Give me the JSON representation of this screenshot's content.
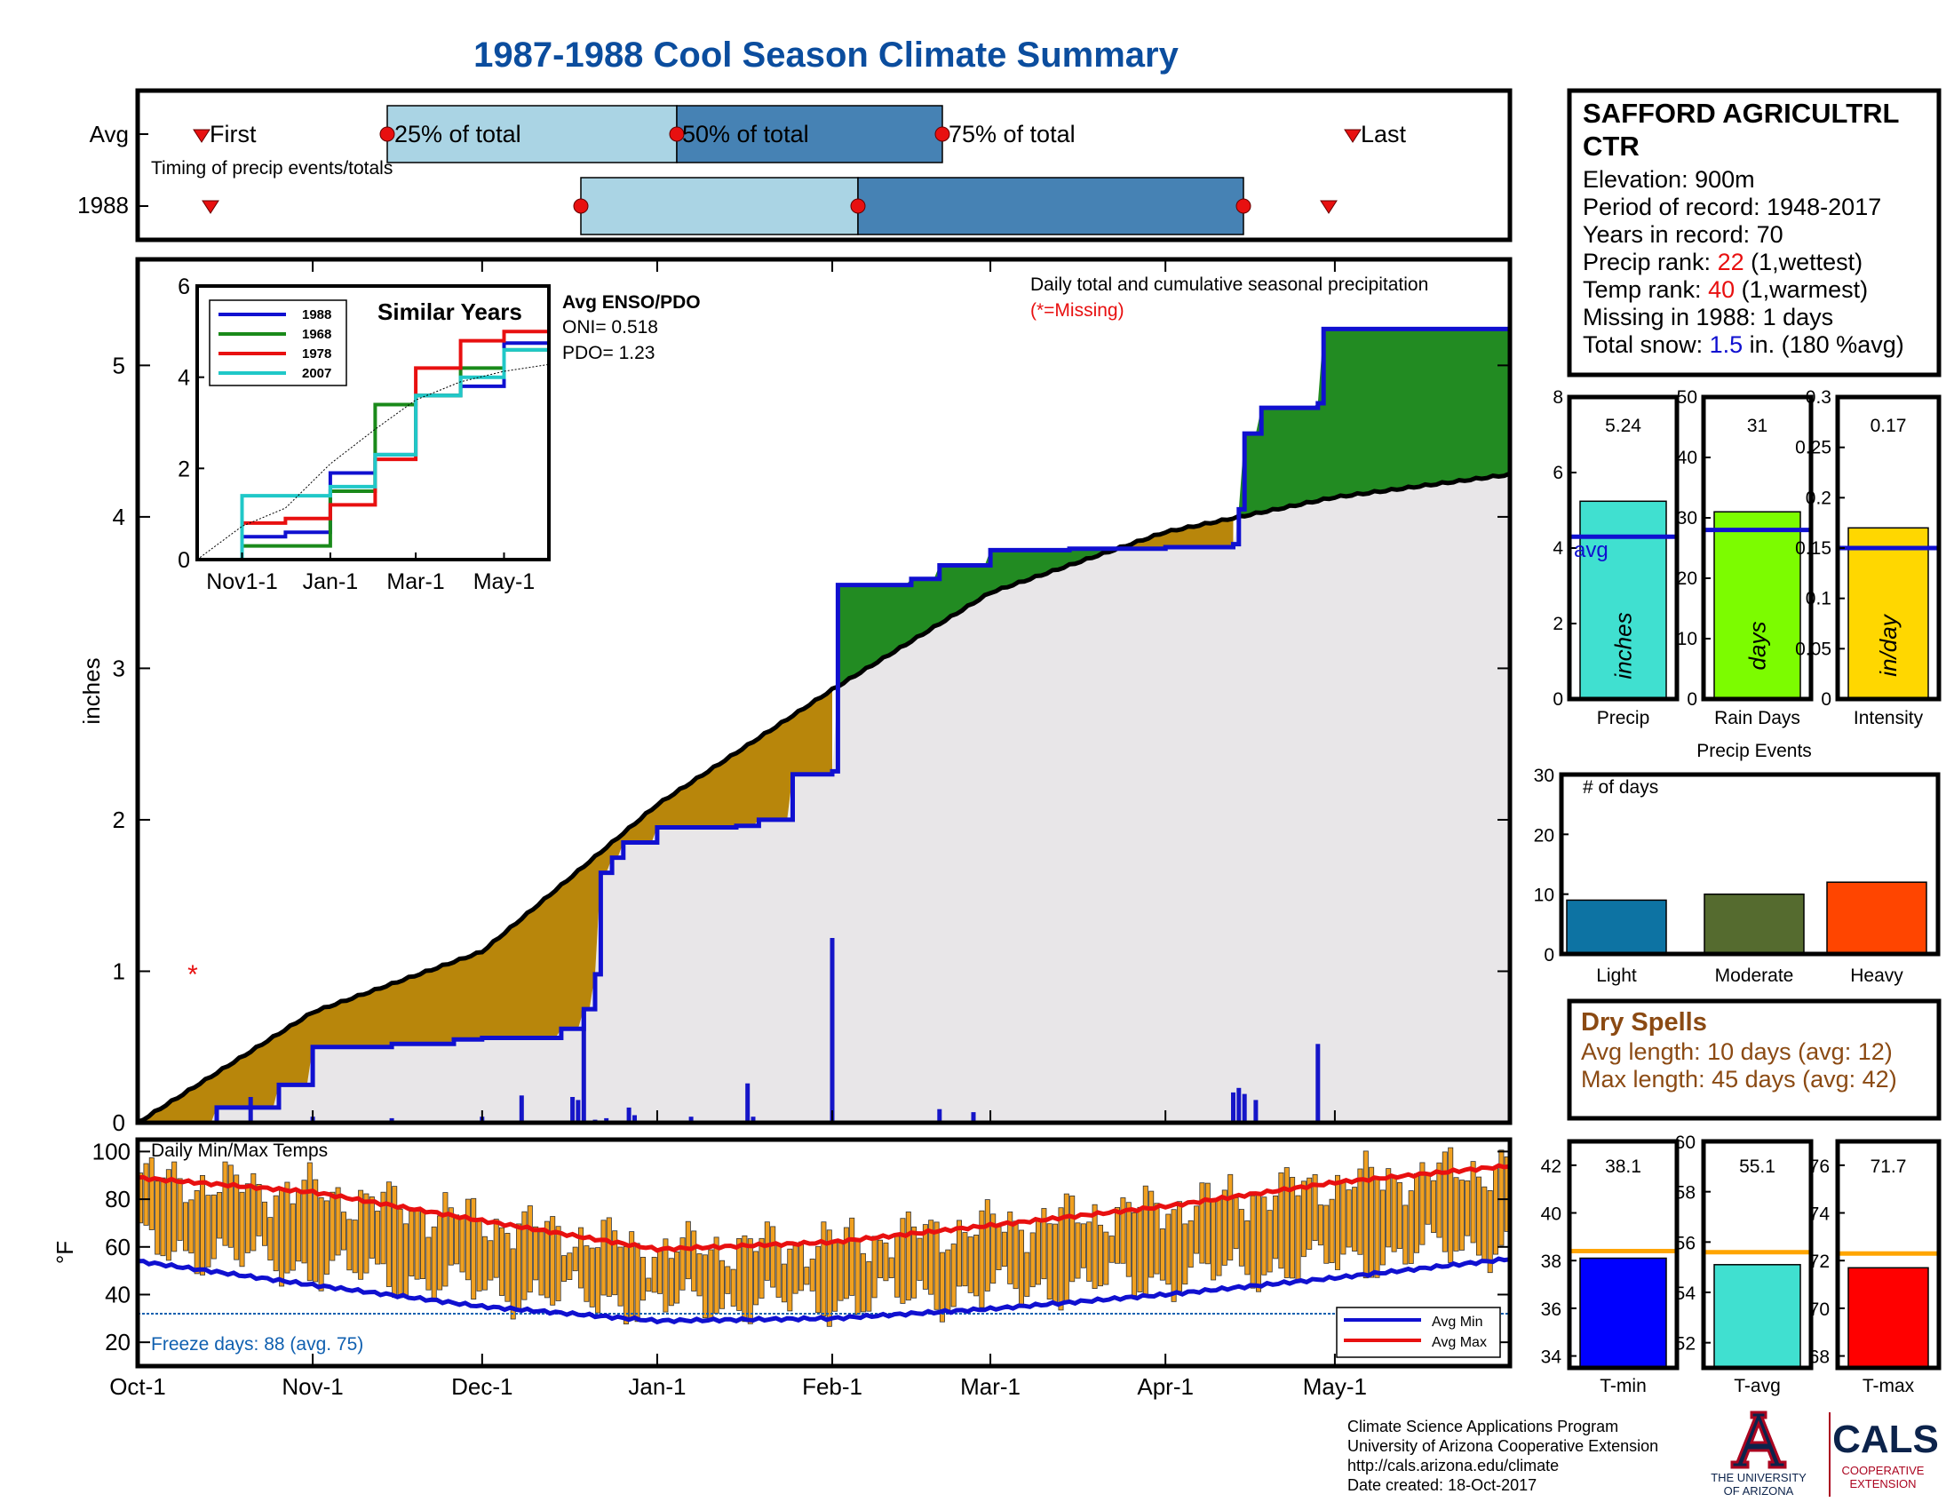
{
  "title": "1987-1988 Cool Season Climate Summary",
  "colors": {
    "title": "#0b4d9e",
    "tan": "#b8860b",
    "green": "#228b22",
    "gray": "#e8e6e8",
    "blue": "#1010d0",
    "red": "#e81010",
    "cyan": "#20c8c8",
    "orange": "#f0a020",
    "light_blue_box": "#aad4e4",
    "mid_blue_box": "#4682b4",
    "brown_text": "#8b4a13",
    "freeze_text": "#1060b0"
  },
  "timing": {
    "rows": [
      "Avg",
      "1988"
    ],
    "subtitle": "Timing of precip events/totals",
    "labels": {
      "first": "First",
      "p25": "25% of total",
      "p50": "50% of total",
      "p75": "75% of total",
      "last": "Last"
    }
  },
  "station": {
    "name_line1": "SAFFORD AGRICULTRL",
    "name_line2": "CTR",
    "elevation": "Elevation: 900m",
    "period": "Period of record: 1948-2017",
    "years": "Years in record: 70",
    "precip_rank_label": "Precip rank: ",
    "precip_rank_value": "22",
    "precip_rank_note": " (1,wettest)",
    "temp_rank_label": "Temp rank: ",
    "temp_rank_value": "40",
    "temp_rank_note": " (1,warmest)",
    "missing": "Missing in 1988: 1 days",
    "snow_label": "Total snow: ",
    "snow_value": "1.5",
    "snow_note": " in. (180 %avg)"
  },
  "main_plot": {
    "ylabel": "inches",
    "annotation": "Daily total and cumulative seasonal precipitation",
    "missing_note": "(*=Missing)",
    "x_ticks": [
      "Oct-1",
      "Nov-1",
      "Dec-1",
      "Jan-1",
      "Feb-1",
      "Mar-1",
      "Apr-1",
      "May-1"
    ],
    "y_ticks": [
      "0",
      "1",
      "2",
      "3",
      "4",
      "5"
    ]
  },
  "inset": {
    "title": "Similar Years",
    "x_ticks": [
      "Nov1-1",
      "Jan-1",
      "Mar-1",
      "May-1"
    ],
    "y_ticks": [
      "0",
      "2",
      "4",
      "6"
    ],
    "legend": [
      "1988",
      "1968",
      "1978",
      "2007"
    ],
    "enso_title": "Avg ENSO/PDO",
    "oni": "ONI= 0.518",
    "pdo": "PDO= 1.23"
  },
  "summary_bars": {
    "precip": {
      "label": "Precip",
      "unit": "inches",
      "value_text": "5.24",
      "avg_label": "avg",
      "ticks": [
        "0",
        "2",
        "4",
        "6",
        "8"
      ]
    },
    "rain_days": {
      "label": "Rain Days",
      "unit": "days",
      "value_text": "31",
      "ticks": [
        "0",
        "10",
        "20",
        "30",
        "40",
        "50"
      ]
    },
    "intensity": {
      "label": "Intensity",
      "unit": "in/day",
      "value_text": "0.17",
      "ticks": [
        "0",
        "0.05",
        "0.1",
        "0.15",
        "0.2",
        "0.25",
        "0.3"
      ]
    }
  },
  "events": {
    "title": "Precip Events",
    "ylabel": "# of days",
    "ticks": [
      "0",
      "10",
      "20",
      "30"
    ],
    "categories": [
      "Light",
      "Moderate",
      "Heavy"
    ]
  },
  "dry_spells": {
    "title": "Dry Spells",
    "avg_length": "Avg length: 10 days (avg: 12)",
    "max_length": "Max length: 45 days (avg: 42)"
  },
  "temp_plot": {
    "title": "Daily Min/Max Temps",
    "ylabel": "°F",
    "y_ticks": [
      "20",
      "40",
      "60",
      "80",
      "100"
    ],
    "freeze": "Freeze days: 88 (avg. 75)",
    "legend": [
      "Avg Min",
      "Avg Max"
    ]
  },
  "temp_bars": {
    "tmin": {
      "label": "T-min",
      "value_text": "38.1",
      "ticks": [
        "34",
        "36",
        "38",
        "40",
        "42"
      ]
    },
    "tavg": {
      "label": "T-avg",
      "value_text": "55.1",
      "ticks": [
        "52",
        "54",
        "56",
        "58",
        "60"
      ]
    },
    "tmax": {
      "label": "T-max",
      "value_text": "71.7",
      "ticks": [
        "68",
        "70",
        "72",
        "74",
        "76"
      ]
    }
  },
  "footer": {
    "line1": "Climate Science Applications Program",
    "line2": "University of Arizona Cooperative Extension",
    "line3": "http://cals.arizona.edu/climate",
    "line4": " Date created: 18-Oct-2017",
    "ua_name1": "THE UNIVERSITY",
    "ua_name2": "OF ARIZONA",
    "cals": "CALS",
    "coop1": "COOPERATIVE",
    "coop2": "EXTENSION"
  },
  "chart_data": [
    {
      "type": "area",
      "name": "cumulative precipitation",
      "x_unit": "date",
      "ylim": [
        0,
        5.7
      ],
      "series": [
        {
          "name": "1988",
          "x": [
            "Oct-1",
            "Oct-15",
            "Oct-26",
            "Nov-1",
            "Nov-15",
            "Nov-26",
            "Dec-1",
            "Dec-15",
            "Dec-19",
            "Dec-21",
            "Dec-22",
            "Dec-24",
            "Dec-26",
            "Jan-1",
            "Jan-15",
            "Jan-19",
            "Jan-25",
            "Feb-1",
            "Feb-2",
            "Feb-15",
            "Feb-20",
            "Mar-1",
            "Mar-15",
            "Apr-1",
            "Apr-13",
            "Apr-14",
            "Apr-15",
            "Apr-18",
            "Apr-28",
            "Apr-29",
            "Apr-30"
          ],
          "values": [
            0,
            0.1,
            0.25,
            0.5,
            0.52,
            0.55,
            0.56,
            0.62,
            0.75,
            0.98,
            1.65,
            1.75,
            1.85,
            1.95,
            1.96,
            2.0,
            2.3,
            2.32,
            3.55,
            3.59,
            3.68,
            3.78,
            3.79,
            3.8,
            3.82,
            4.05,
            4.55,
            4.72,
            4.75,
            5.24,
            5.24
          ]
        },
        {
          "name": "Avg",
          "x": [
            "Oct-1",
            "Nov-1",
            "Dec-1",
            "Jan-1",
            "Feb-1",
            "Mar-1",
            "Apr-1",
            "May-1",
            "May-31"
          ],
          "values": [
            0,
            0.73,
            1.13,
            2.1,
            2.86,
            3.5,
            3.9,
            4.13,
            4.28
          ]
        }
      ]
    },
    {
      "type": "bar",
      "name": "daily precipitation",
      "x": [
        "Oct-21",
        "Nov-1",
        "Nov-15",
        "Dec-1",
        "Dec-8",
        "Dec-17",
        "Dec-18",
        "Dec-19",
        "Dec-21",
        "Dec-23",
        "Dec-27",
        "Dec-28",
        "Jan-7",
        "Jan-17",
        "Jan-18",
        "Feb-1",
        "Feb-20",
        "Feb-26",
        "Apr-13",
        "Apr-14",
        "Apr-15",
        "Apr-17",
        "Apr-28"
      ],
      "values": [
        0.17,
        0.04,
        0.03,
        0.04,
        0.18,
        0.17,
        0.15,
        0.74,
        0.02,
        0.03,
        0.1,
        0.05,
        0.04,
        0.26,
        0.04,
        1.22,
        0.09,
        0.07,
        0.2,
        0.23,
        0.19,
        0.15,
        0.52
      ]
    },
    {
      "type": "line",
      "name": "similar years",
      "x": [
        "Oct-1",
        "Nov-1",
        "Dec-1",
        "Jan-1",
        "Feb-1",
        "Mar-1",
        "Apr-1",
        "May-1",
        "May-31"
      ],
      "ylim": [
        0,
        6
      ],
      "series": [
        {
          "name": "1988",
          "values": [
            0,
            0.5,
            0.6,
            1.9,
            2.3,
            3.6,
            3.8,
            4.75,
            5.24
          ]
        },
        {
          "name": "1968",
          "values": [
            0,
            0.3,
            0.3,
            1.5,
            3.4,
            3.6,
            4.2,
            4.6,
            4.6
          ]
        },
        {
          "name": "1978",
          "values": [
            0,
            0.8,
            0.9,
            1.2,
            2.2,
            4.2,
            4.8,
            5.0,
            5.0
          ]
        },
        {
          "name": "2007",
          "values": [
            0,
            1.4,
            1.4,
            1.6,
            2.3,
            3.6,
            4.0,
            4.6,
            4.6
          ]
        },
        {
          "name": "Avg",
          "values": [
            0,
            0.73,
            1.13,
            2.1,
            2.86,
            3.5,
            3.9,
            4.13,
            4.28
          ]
        }
      ]
    },
    {
      "type": "bar",
      "name": "season totals",
      "categories": [
        "Precip",
        "Rain Days",
        "Intensity"
      ],
      "values": [
        5.24,
        31,
        0.17
      ],
      "averages": [
        4.3,
        28,
        0.15
      ],
      "ylims": [
        [
          0,
          8
        ],
        [
          0,
          50
        ],
        [
          0,
          0.3
        ]
      ]
    },
    {
      "type": "bar",
      "name": "precip events",
      "categories": [
        "Light",
        "Moderate",
        "Heavy"
      ],
      "values": [
        9,
        10,
        12
      ],
      "ylim": [
        0,
        30
      ]
    },
    {
      "type": "line",
      "name": "daily temperatures",
      "x": [
        "Oct-1",
        "Nov-1",
        "Dec-1",
        "Jan-1",
        "Feb-1",
        "Mar-1",
        "Apr-1",
        "May-1",
        "May-31"
      ],
      "ylim": [
        10,
        105
      ],
      "freeze_line": 32,
      "series": [
        {
          "name": "Avg Max",
          "values": [
            89,
            83,
            71,
            59,
            62,
            69,
            77,
            87,
            94
          ]
        },
        {
          "name": "Avg Min",
          "values": [
            54,
            44,
            35,
            29,
            30,
            34,
            40,
            47,
            55
          ]
        }
      ]
    },
    {
      "type": "bar",
      "name": "season temperatures",
      "categories": [
        "T-min",
        "T-avg",
        "T-max"
      ],
      "values": [
        38.1,
        55.1,
        71.7
      ],
      "averages": [
        38.4,
        55.6,
        72.3
      ],
      "ylims": [
        [
          33.5,
          43
        ],
        [
          51,
          60
        ],
        [
          67.5,
          77
        ]
      ]
    }
  ]
}
